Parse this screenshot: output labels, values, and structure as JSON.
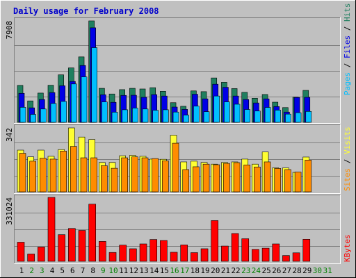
{
  "title": "Daily usage for February 2008",
  "colors": {
    "hits": "#1f7f5f",
    "files": "#0000e6",
    "pages": "#00bfff",
    "visits": "#ffff33",
    "sites": "#ff8c00",
    "kbytes": "#ff0000",
    "weekend": "#008000",
    "weekday": "#000000",
    "panel": "#c0c0c0",
    "label_slash": "#000000"
  },
  "right_labels": {
    "top": {
      "pages": "Pages",
      "files": "Files",
      "hits": "Hits",
      "sep": " / "
    },
    "middle": {
      "sites": "Sites",
      "visits": "Visits",
      "sep": " / "
    },
    "bottom": {
      "kbytes": "KBytes"
    }
  },
  "days": [
    "1",
    "2",
    "3",
    "4",
    "5",
    "6",
    "7",
    "8",
    "9",
    "10",
    "11",
    "12",
    "13",
    "14",
    "15",
    "16",
    "17",
    "18",
    "19",
    "20",
    "21",
    "22",
    "23",
    "24",
    "25",
    "26",
    "27",
    "28",
    "29",
    "30",
    "31"
  ],
  "weekend_days": [
    2,
    3,
    9,
    10,
    16,
    17,
    23,
    24,
    30,
    31
  ],
  "chart_data": [
    {
      "type": "bar",
      "panel": "hits-files-pages",
      "ymax_label": "7908",
      "ylim": [
        0,
        7908
      ],
      "categories": [
        "1",
        "2",
        "3",
        "4",
        "5",
        "6",
        "7",
        "8",
        "9",
        "10",
        "11",
        "12",
        "13",
        "14",
        "15",
        "16",
        "17",
        "18",
        "19",
        "20",
        "21",
        "22",
        "23",
        "24",
        "25",
        "26",
        "27",
        "28",
        "29",
        "30",
        "31"
      ],
      "series": [
        {
          "name": "Hits",
          "values": [
            2880,
            1670,
            2280,
            2890,
            3700,
            4240,
            5100,
            7908,
            2650,
            2210,
            2550,
            2650,
            2600,
            2700,
            2420,
            1530,
            1250,
            2450,
            2390,
            3460,
            3120,
            2630,
            2340,
            1880,
            2170,
            1570,
            1150,
            1960,
            2490,
            0,
            0
          ]
        },
        {
          "name": "Files",
          "values": [
            2260,
            1130,
            1780,
            2320,
            2850,
            3190,
            4430,
            7370,
            2150,
            1560,
            2100,
            2110,
            1950,
            2160,
            2050,
            1190,
            1010,
            2190,
            1830,
            2970,
            2730,
            2050,
            1780,
            1510,
            1830,
            1230,
            800,
            1940,
            1950,
            0,
            0
          ]
        },
        {
          "name": "Pages",
          "values": [
            1170,
            620,
            1040,
            1470,
            1630,
            2990,
            3540,
            5820,
            1590,
            790,
            980,
            1110,
            1040,
            940,
            980,
            800,
            560,
            1260,
            830,
            2050,
            1590,
            1410,
            1000,
            880,
            1160,
            950,
            640,
            750,
            850,
            0,
            0
          ]
        }
      ]
    },
    {
      "type": "bar",
      "panel": "visits-sites",
      "ymax_label": "342",
      "ylim": [
        0,
        342
      ],
      "categories": [
        "1",
        "2",
        "3",
        "4",
        "5",
        "6",
        "7",
        "8",
        "9",
        "10",
        "11",
        "12",
        "13",
        "14",
        "15",
        "16",
        "17",
        "18",
        "19",
        "20",
        "21",
        "22",
        "23",
        "24",
        "25",
        "26",
        "27",
        "28",
        "29",
        "30",
        "31"
      ],
      "series": [
        {
          "name": "Visits",
          "values": [
            223,
            187,
            223,
            190,
            226,
            342,
            293,
            280,
            157,
            157,
            193,
            195,
            190,
            175,
            174,
            303,
            160,
            164,
            157,
            148,
            157,
            160,
            175,
            148,
            213,
            128,
            128,
            104,
            186,
            0,
            0
          ]
        },
        {
          "name": "Sites",
          "values": [
            206,
            164,
            180,
            175,
            218,
            243,
            182,
            182,
            140,
            126,
            182,
            187,
            182,
            178,
            166,
            260,
            119,
            134,
            148,
            145,
            152,
            156,
            144,
            133,
            160,
            125,
            119,
            106,
            170,
            0,
            0
          ]
        }
      ]
    },
    {
      "type": "bar",
      "panel": "kbytes",
      "ymax_label": "331024",
      "ylim": [
        0,
        331024
      ],
      "categories": [
        "1",
        "2",
        "3",
        "4",
        "5",
        "6",
        "7",
        "8",
        "9",
        "10",
        "11",
        "12",
        "13",
        "14",
        "15",
        "16",
        "17",
        "18",
        "19",
        "20",
        "21",
        "22",
        "23",
        "24",
        "25",
        "26",
        "27",
        "28",
        "29",
        "30",
        "31"
      ],
      "series": [
        {
          "name": "KBytes",
          "values": [
            99000,
            38000,
            74000,
            331024,
            138000,
            170000,
            160000,
            296000,
            103000,
            46000,
            84000,
            65000,
            90000,
            113000,
            108000,
            47000,
            85000,
            45000,
            65000,
            211000,
            79000,
            144000,
            117000,
            62000,
            68000,
            90000,
            30000,
            44000,
            114000,
            0,
            0
          ]
        }
      ]
    }
  ]
}
